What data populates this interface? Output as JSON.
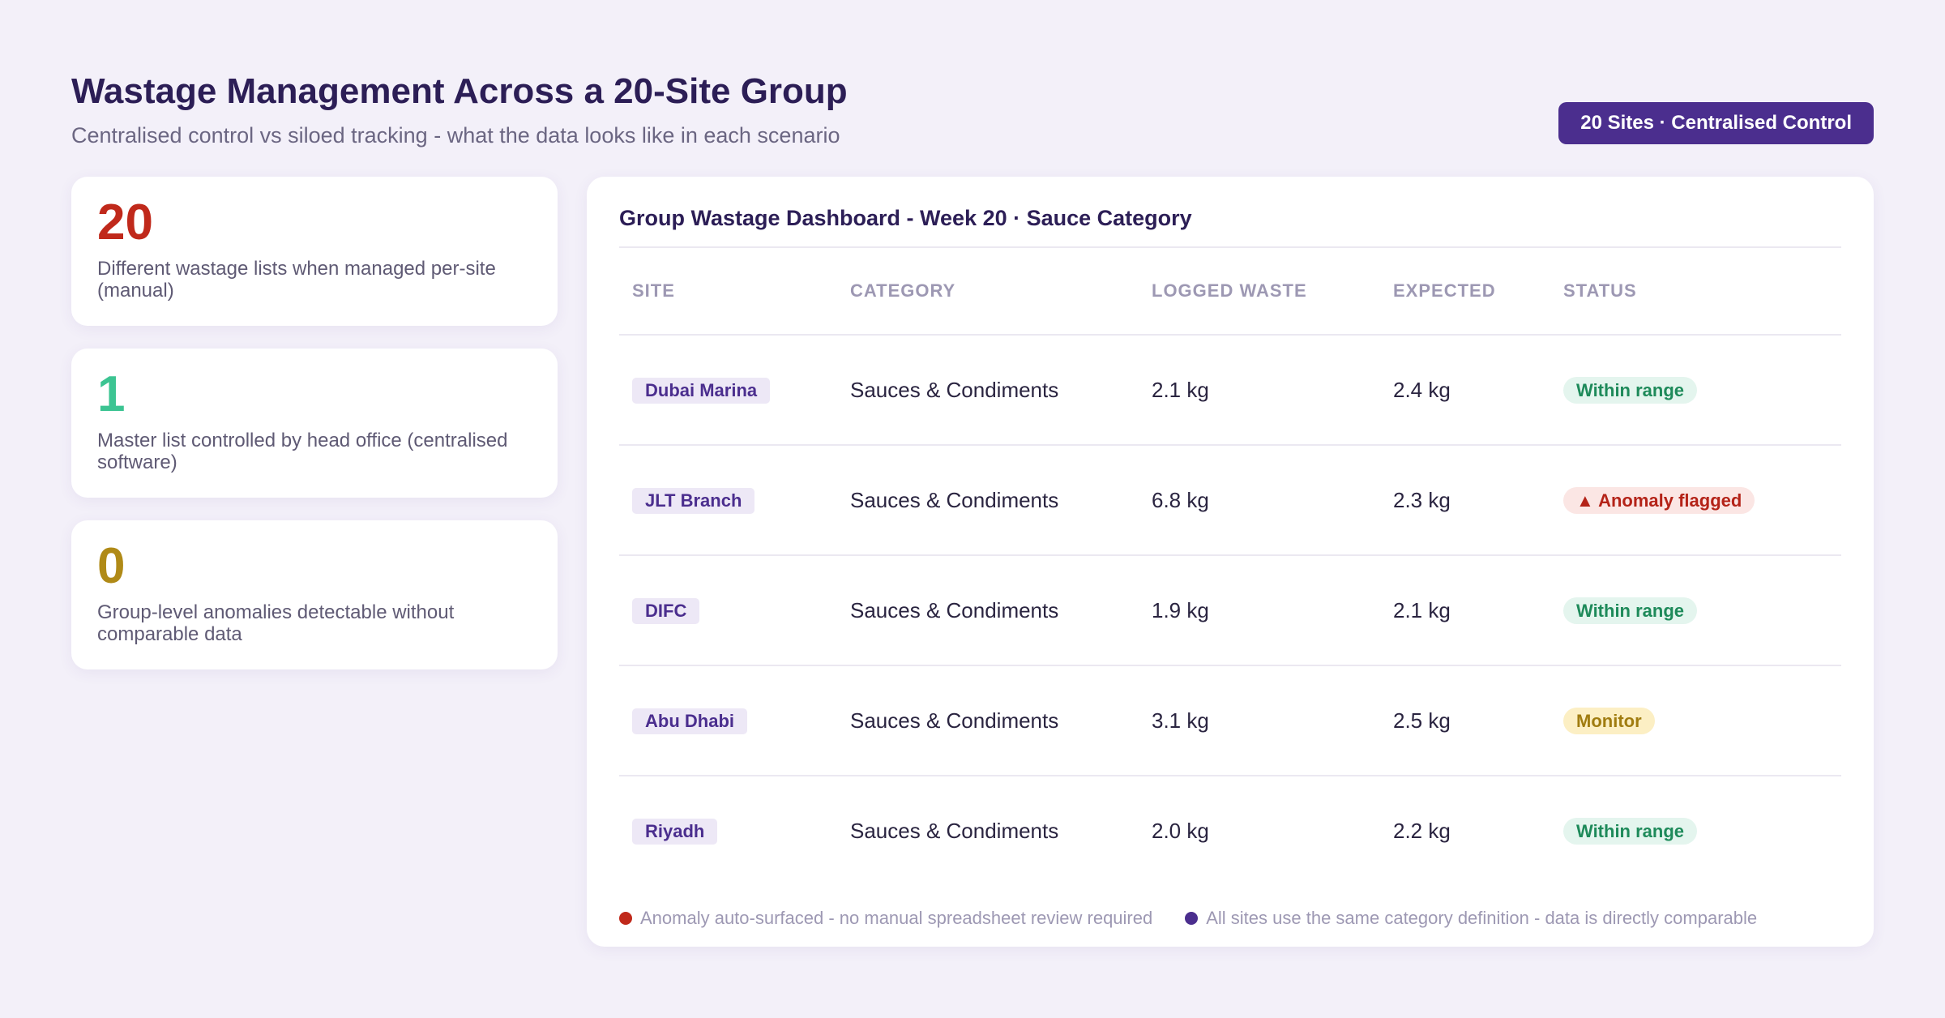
{
  "header": {
    "title": "Wastage Management Across a 20-Site Group",
    "subtitle": "Centralised control vs siloed tracking - what the data looks like in each scenario",
    "badge": "20 Sites · Centralised Control"
  },
  "stats": [
    {
      "value": "20",
      "label": "Different wastage lists when managed per-site (manual)",
      "color": "#c0291b"
    },
    {
      "value": "1",
      "label": "Master list controlled by head office (centralised software)",
      "color": "#3cc492"
    },
    {
      "value": "0",
      "label": "Group-level anomalies detectable without comparable data",
      "color": "#b08a17"
    }
  ],
  "dashboard": {
    "title": "Group Wastage Dashboard - Week 20 · Sauce Category",
    "columns": [
      "SITE",
      "CATEGORY",
      "LOGGED WASTE",
      "EXPECTED",
      "STATUS"
    ],
    "rows": [
      {
        "site": "Dubai Marina",
        "category": "Sauces & Condiments",
        "logged": "2.1 kg",
        "expected": "2.4 kg",
        "status": "Within range"
      },
      {
        "site": "JLT Branch",
        "category": "Sauces & Condiments",
        "logged": "6.8 kg",
        "expected": "2.3 kg",
        "status": "▲ Anomaly flagged"
      },
      {
        "site": "DIFC",
        "category": "Sauces & Condiments",
        "logged": "1.9 kg",
        "expected": "2.1 kg",
        "status": "Within range"
      },
      {
        "site": "Abu Dhabi",
        "category": "Sauces & Condiments",
        "logged": "3.1 kg",
        "expected": "2.5 kg",
        "status": "Monitor"
      },
      {
        "site": "Riyadh",
        "category": "Sauces & Condiments",
        "logged": "2.0 kg",
        "expected": "2.2 kg",
        "status": "Within range"
      }
    ],
    "footer": [
      {
        "text": "Anomaly auto-surfaced - no manual spreadsheet review required",
        "color": "#c0291b"
      },
      {
        "text": "All sites use the same category definition - data is directly comparable",
        "color": "#4b2e8e"
      }
    ]
  }
}
